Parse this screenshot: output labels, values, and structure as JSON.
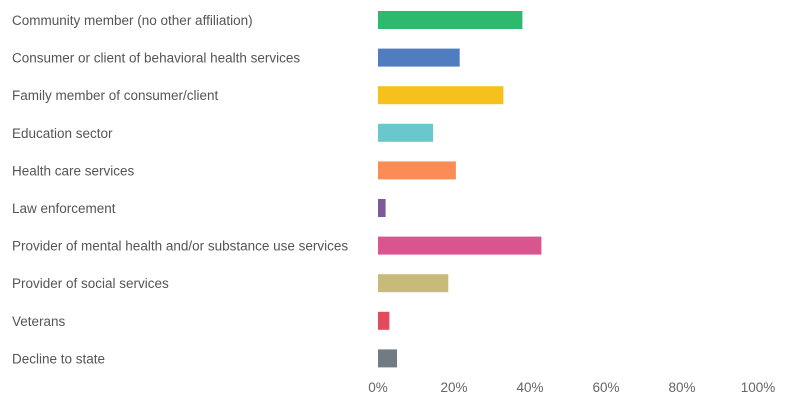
{
  "chart_data": {
    "type": "bar",
    "orientation": "horizontal",
    "title": "",
    "xlabel": "",
    "ylabel": "",
    "categories": [
      "Community member (no other affiliation)",
      "Consumer or client of behavioral health services",
      "Family member of consumer/client",
      "Education sector",
      "Health care services",
      "Law enforcement",
      "Provider of mental health and/or substance use services",
      "Provider of social services",
      "Veterans",
      "Decline to state"
    ],
    "values": [
      38,
      21.5,
      33,
      14.5,
      20.5,
      2,
      43,
      18.5,
      3,
      5
    ],
    "colors": [
      "#2dba6e",
      "#4f7dbf",
      "#f7c11b",
      "#6ac8cc",
      "#fc8c55",
      "#7e5a9b",
      "#d9558f",
      "#c8ba79",
      "#e24a5e",
      "#707b84"
    ],
    "xlim": [
      0,
      100
    ],
    "x_ticks": [
      "0%",
      "20%",
      "40%",
      "60%",
      "80%",
      "100%"
    ],
    "x_tick_values": [
      0,
      20,
      40,
      60,
      80,
      100
    ],
    "grid": false,
    "legend": "none"
  }
}
